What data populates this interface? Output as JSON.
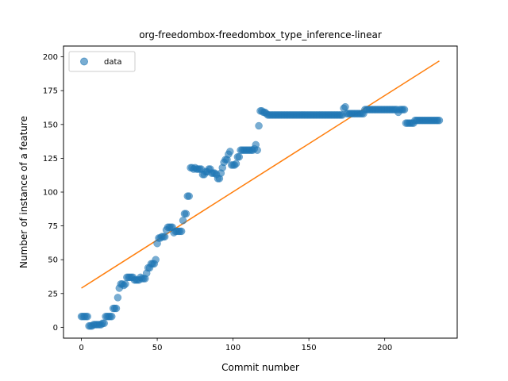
{
  "chart_data": {
    "type": "scatter",
    "title": "org-freedombox-freedombox_type_inference-linear",
    "xlabel": "Commit number",
    "ylabel": "Number of instance of a feature",
    "xlim": [
      -11.8,
      247.8
    ],
    "ylim": [
      -8,
      208
    ],
    "xticks": [
      0,
      50,
      100,
      150,
      200
    ],
    "yticks": [
      0,
      25,
      50,
      75,
      100,
      125,
      150,
      175,
      200
    ],
    "legend": {
      "position": "top-left",
      "entries": [
        "data"
      ]
    },
    "colors": {
      "data": "#1f77b4",
      "fit": "#ff7f0e"
    },
    "series": [
      {
        "name": "data",
        "kind": "scatter",
        "points": [
          [
            0,
            8
          ],
          [
            1,
            8
          ],
          [
            2,
            8
          ],
          [
            3,
            8
          ],
          [
            4,
            8
          ],
          [
            5,
            1
          ],
          [
            6,
            1
          ],
          [
            7,
            1
          ],
          [
            8,
            2
          ],
          [
            9,
            2
          ],
          [
            10,
            2
          ],
          [
            11,
            2
          ],
          [
            12,
            2
          ],
          [
            13,
            2
          ],
          [
            14,
            3
          ],
          [
            15,
            3
          ],
          [
            16,
            8
          ],
          [
            17,
            8
          ],
          [
            18,
            8
          ],
          [
            19,
            8
          ],
          [
            20,
            8
          ],
          [
            21,
            14
          ],
          [
            22,
            14
          ],
          [
            23,
            14
          ],
          [
            24,
            22
          ],
          [
            25,
            29
          ],
          [
            26,
            32
          ],
          [
            27,
            32
          ],
          [
            28,
            31
          ],
          [
            29,
            32
          ],
          [
            30,
            37
          ],
          [
            31,
            37
          ],
          [
            32,
            37
          ],
          [
            33,
            37
          ],
          [
            34,
            37
          ],
          [
            35,
            35
          ],
          [
            36,
            35
          ],
          [
            37,
            35
          ],
          [
            38,
            35
          ],
          [
            39,
            37
          ],
          [
            40,
            36
          ],
          [
            41,
            36
          ],
          [
            42,
            36
          ],
          [
            43,
            40
          ],
          [
            44,
            44
          ],
          [
            45,
            44
          ],
          [
            46,
            47
          ],
          [
            47,
            47
          ],
          [
            48,
            47
          ],
          [
            49,
            50
          ],
          [
            50,
            62
          ],
          [
            51,
            66
          ],
          [
            52,
            66
          ],
          [
            53,
            67
          ],
          [
            54,
            67
          ],
          [
            55,
            67
          ],
          [
            56,
            72
          ],
          [
            57,
            74
          ],
          [
            58,
            74
          ],
          [
            59,
            74
          ],
          [
            60,
            74
          ],
          [
            61,
            70
          ],
          [
            62,
            71
          ],
          [
            63,
            71
          ],
          [
            64,
            71
          ],
          [
            65,
            71
          ],
          [
            66,
            71
          ],
          [
            67,
            79
          ],
          [
            68,
            84
          ],
          [
            69,
            84
          ],
          [
            70,
            97
          ],
          [
            71,
            97
          ],
          [
            72,
            118
          ],
          [
            73,
            118
          ],
          [
            74,
            117
          ],
          [
            75,
            118
          ],
          [
            76,
            117
          ],
          [
            77,
            117
          ],
          [
            78,
            117
          ],
          [
            79,
            117
          ],
          [
            80,
            113
          ],
          [
            81,
            113
          ],
          [
            82,
            115
          ],
          [
            83,
            115
          ],
          [
            84,
            117
          ],
          [
            85,
            117
          ],
          [
            86,
            114
          ],
          [
            87,
            114
          ],
          [
            88,
            114
          ],
          [
            89,
            113
          ],
          [
            90,
            110
          ],
          [
            91,
            110
          ],
          [
            92,
            114
          ],
          [
            93,
            118
          ],
          [
            94,
            122
          ],
          [
            95,
            124
          ],
          [
            96,
            124
          ],
          [
            97,
            128
          ],
          [
            98,
            130
          ],
          [
            99,
            120
          ],
          [
            100,
            120
          ],
          [
            101,
            120
          ],
          [
            102,
            121
          ],
          [
            103,
            126
          ],
          [
            104,
            126
          ],
          [
            105,
            131
          ],
          [
            106,
            131
          ],
          [
            107,
            131
          ],
          [
            108,
            131
          ],
          [
            109,
            131
          ],
          [
            110,
            131
          ],
          [
            111,
            131
          ],
          [
            112,
            131
          ],
          [
            113,
            131
          ],
          [
            114,
            132
          ],
          [
            115,
            135
          ],
          [
            116,
            131
          ],
          [
            117,
            149
          ],
          [
            118,
            160
          ],
          [
            119,
            160
          ],
          [
            120,
            159
          ],
          [
            121,
            159
          ],
          [
            122,
            158
          ],
          [
            123,
            157
          ],
          [
            124,
            157
          ],
          [
            125,
            157
          ],
          [
            126,
            157
          ],
          [
            127,
            157
          ],
          [
            128,
            157
          ],
          [
            129,
            157
          ],
          [
            130,
            157
          ],
          [
            131,
            157
          ],
          [
            132,
            157
          ],
          [
            133,
            157
          ],
          [
            134,
            157
          ],
          [
            135,
            157
          ],
          [
            136,
            157
          ],
          [
            137,
            157
          ],
          [
            138,
            157
          ],
          [
            139,
            157
          ],
          [
            140,
            157
          ],
          [
            141,
            157
          ],
          [
            142,
            157
          ],
          [
            143,
            157
          ],
          [
            144,
            157
          ],
          [
            145,
            157
          ],
          [
            146,
            157
          ],
          [
            147,
            157
          ],
          [
            148,
            157
          ],
          [
            149,
            157
          ],
          [
            150,
            157
          ],
          [
            151,
            157
          ],
          [
            152,
            157
          ],
          [
            153,
            157
          ],
          [
            154,
            157
          ],
          [
            155,
            157
          ],
          [
            156,
            157
          ],
          [
            157,
            157
          ],
          [
            158,
            157
          ],
          [
            159,
            157
          ],
          [
            160,
            157
          ],
          [
            161,
            157
          ],
          [
            162,
            157
          ],
          [
            163,
            157
          ],
          [
            164,
            157
          ],
          [
            165,
            157
          ],
          [
            166,
            157
          ],
          [
            167,
            157
          ],
          [
            168,
            157
          ],
          [
            169,
            157
          ],
          [
            170,
            157
          ],
          [
            171,
            157
          ],
          [
            172,
            157
          ],
          [
            173,
            162
          ],
          [
            174,
            163
          ],
          [
            175,
            158
          ],
          [
            176,
            158
          ],
          [
            177,
            158
          ],
          [
            178,
            158
          ],
          [
            179,
            158
          ],
          [
            180,
            158
          ],
          [
            181,
            158
          ],
          [
            182,
            158
          ],
          [
            183,
            158
          ],
          [
            184,
            158
          ],
          [
            185,
            158
          ],
          [
            186,
            158
          ],
          [
            187,
            161
          ],
          [
            188,
            161
          ],
          [
            189,
            161
          ],
          [
            190,
            161
          ],
          [
            191,
            161
          ],
          [
            192,
            161
          ],
          [
            193,
            161
          ],
          [
            194,
            161
          ],
          [
            195,
            161
          ],
          [
            196,
            161
          ],
          [
            197,
            161
          ],
          [
            198,
            161
          ],
          [
            199,
            161
          ],
          [
            200,
            161
          ],
          [
            201,
            161
          ],
          [
            202,
            161
          ],
          [
            203,
            161
          ],
          [
            204,
            161
          ],
          [
            205,
            161
          ],
          [
            206,
            161
          ],
          [
            207,
            161
          ],
          [
            208,
            161
          ],
          [
            209,
            159
          ],
          [
            210,
            161
          ],
          [
            211,
            161
          ],
          [
            212,
            161
          ],
          [
            213,
            161
          ],
          [
            214,
            151
          ],
          [
            215,
            151
          ],
          [
            216,
            151
          ],
          [
            217,
            151
          ],
          [
            218,
            151
          ],
          [
            219,
            151
          ],
          [
            220,
            153
          ],
          [
            221,
            153
          ],
          [
            222,
            153
          ],
          [
            223,
            153
          ],
          [
            224,
            153
          ],
          [
            225,
            153
          ],
          [
            226,
            153
          ],
          [
            227,
            153
          ],
          [
            228,
            153
          ],
          [
            229,
            153
          ],
          [
            230,
            153
          ],
          [
            231,
            153
          ],
          [
            232,
            153
          ],
          [
            233,
            153
          ],
          [
            234,
            153
          ],
          [
            235,
            153
          ],
          [
            236,
            153
          ]
        ]
      },
      {
        "kind": "line",
        "points": [
          [
            0,
            29
          ],
          [
            236,
            197
          ]
        ]
      }
    ]
  }
}
